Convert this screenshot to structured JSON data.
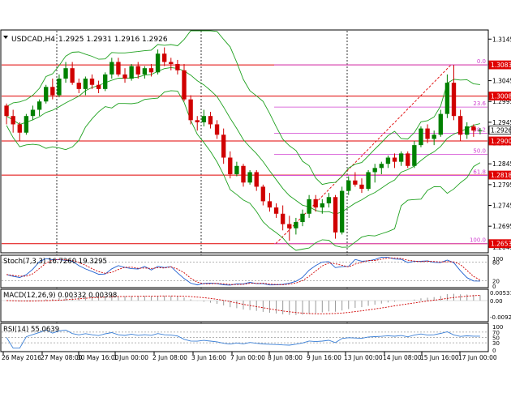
{
  "header": {
    "title": "USDCAD,H4",
    "ohlc": "1.2925 1.2931 1.2916 1.2926"
  },
  "colors": {
    "up": "#008000",
    "down": "#d00000",
    "bands": "#1fa11f",
    "hline": "#e00000",
    "fib": "#d040d0",
    "macd_signal": "#d00000",
    "rsi": "#3a7fd6",
    "stoch_main": "#1f5fd0",
    "stoch_signal": "#d00000"
  },
  "price_axis": {
    "ticks": [
      "1.3145",
      "1.3085",
      "1.3045",
      "1.2995",
      "1.2945",
      "1.2895",
      "1.2845",
      "1.2795",
      "1.2745",
      "1.2695",
      "1.2645"
    ],
    "tags": [
      {
        "label": "1.3083",
        "value": 1.3083
      },
      {
        "label": "1.3008",
        "value": 1.3008
      },
      {
        "label": "1.2926",
        "value": 1.2926,
        "current": true
      },
      {
        "label": "1.2900",
        "value": 1.29
      },
      {
        "label": "1.2818",
        "value": 1.2818
      },
      {
        "label": "1.2653",
        "value": 1.2653
      }
    ]
  },
  "fib_labels": [
    "0.0",
    "23.6",
    "38.2",
    "50.0",
    "61.8",
    "100.0"
  ],
  "stoch": {
    "label": "Stoch(7,3,3) 16.7260 19.3295",
    "ticks": [
      "100",
      "80",
      "20",
      "0"
    ]
  },
  "macd": {
    "label": "MACD(12,26,9) 0.00332 0.00398",
    "ticks": [
      "0.00531",
      "0.00",
      "-0.0092"
    ]
  },
  "rsi": {
    "label": "RSI(14) 55.0639",
    "ticks": [
      "100",
      "70",
      "50",
      "30",
      "0"
    ]
  },
  "time_axis": [
    "26 May 2016",
    "27 May 08:00",
    "30 May 16:00",
    "1 Jun 00:00",
    "2 Jun 08:00",
    "3 Jun 16:00",
    "7 Jun 00:00",
    "8 Jun 08:00",
    "9 Jun 16:00",
    "13 Jun 00:00",
    "14 Jun 08:00",
    "15 Jun 16:00",
    "17 Jun 00:00"
  ],
  "chart_data": {
    "type": "candlestick",
    "symbol": "USDCAD",
    "timeframe": "H4",
    "ylim": [
      1.2633,
      1.3165
    ],
    "horizontal_levels": [
      1.3083,
      1.3008,
      1.29,
      1.2818,
      1.2653
    ],
    "fibonacci": {
      "from": 1.2653,
      "to": 1.3083,
      "levels": [
        "0.0",
        "23.6",
        "38.2",
        "50.0",
        "61.8",
        "100.0"
      ]
    },
    "candles": [
      [
        1.2985,
        1.299,
        1.294,
        1.296
      ],
      [
        1.296,
        1.2975,
        1.292,
        1.294
      ],
      [
        1.294,
        1.2945,
        1.29,
        1.292
      ],
      [
        1.292,
        1.2965,
        1.2915,
        1.296
      ],
      [
        1.296,
        1.2985,
        1.295,
        1.2975
      ],
      [
        1.2975,
        1.3,
        1.296,
        1.2995
      ],
      [
        1.2995,
        1.3035,
        1.299,
        1.303
      ],
      [
        1.303,
        1.305,
        1.3,
        1.301
      ],
      [
        1.301,
        1.306,
        1.3005,
        1.305
      ],
      [
        1.305,
        1.309,
        1.304,
        1.3075
      ],
      [
        1.3075,
        1.309,
        1.3035,
        1.304
      ],
      [
        1.304,
        1.305,
        1.3015,
        1.3025
      ],
      [
        1.3025,
        1.3055,
        1.301,
        1.305
      ],
      [
        1.305,
        1.306,
        1.3025,
        1.3035
      ],
      [
        1.3035,
        1.3045,
        1.3015,
        1.3025
      ],
      [
        1.3025,
        1.3065,
        1.302,
        1.306
      ],
      [
        1.306,
        1.31,
        1.305,
        1.309
      ],
      [
        1.309,
        1.31,
        1.3055,
        1.306
      ],
      [
        1.306,
        1.3075,
        1.304,
        1.305
      ],
      [
        1.305,
        1.3085,
        1.3045,
        1.308
      ],
      [
        1.308,
        1.309,
        1.305,
        1.306
      ],
      [
        1.306,
        1.308,
        1.305,
        1.3075
      ],
      [
        1.3075,
        1.3085,
        1.3055,
        1.3065
      ],
      [
        1.3065,
        1.312,
        1.306,
        1.311
      ],
      [
        1.311,
        1.3125,
        1.308,
        1.309
      ],
      [
        1.309,
        1.31,
        1.307,
        1.3085
      ],
      [
        1.3085,
        1.3095,
        1.306,
        1.307
      ],
      [
        1.307,
        1.3085,
        1.2995,
        1.3
      ],
      [
        1.3,
        1.301,
        1.294,
        1.295
      ],
      [
        1.295,
        1.296,
        1.2925,
        1.2945
      ],
      [
        1.2945,
        1.2975,
        1.2935,
        1.296
      ],
      [
        1.296,
        1.297,
        1.293,
        1.294
      ],
      [
        1.294,
        1.295,
        1.2905,
        1.2915
      ],
      [
        1.2915,
        1.293,
        1.2845,
        1.286
      ],
      [
        1.286,
        1.2875,
        1.281,
        1.282
      ],
      [
        1.282,
        1.285,
        1.2815,
        1.284
      ],
      [
        1.284,
        1.2845,
        1.279,
        1.28
      ],
      [
        1.28,
        1.283,
        1.2795,
        1.2825
      ],
      [
        1.2825,
        1.283,
        1.278,
        1.279
      ],
      [
        1.279,
        1.2795,
        1.2745,
        1.2755
      ],
      [
        1.2755,
        1.2775,
        1.273,
        1.274
      ],
      [
        1.274,
        1.275,
        1.2715,
        1.2725
      ],
      [
        1.2725,
        1.2745,
        1.2685,
        1.27
      ],
      [
        1.27,
        1.272,
        1.266,
        1.269
      ],
      [
        1.269,
        1.2715,
        1.2675,
        1.2705
      ],
      [
        1.2705,
        1.2735,
        1.2695,
        1.2725
      ],
      [
        1.2725,
        1.277,
        1.2715,
        1.276
      ],
      [
        1.276,
        1.277,
        1.273,
        1.274
      ],
      [
        1.274,
        1.276,
        1.2725,
        1.275
      ],
      [
        1.275,
        1.2775,
        1.274,
        1.2765
      ],
      [
        1.2765,
        1.277,
        1.2665,
        1.268
      ],
      [
        1.268,
        1.279,
        1.2675,
        1.278
      ],
      [
        1.278,
        1.2815,
        1.277,
        1.2805
      ],
      [
        1.2805,
        1.2825,
        1.279,
        1.2795
      ],
      [
        1.2795,
        1.281,
        1.2775,
        1.2785
      ],
      [
        1.2785,
        1.283,
        1.278,
        1.2825
      ],
      [
        1.2825,
        1.2845,
        1.28,
        1.2835
      ],
      [
        1.2835,
        1.285,
        1.282,
        1.2845
      ],
      [
        1.2845,
        1.2865,
        1.2835,
        1.286
      ],
      [
        1.286,
        1.287,
        1.2835,
        1.285
      ],
      [
        1.285,
        1.2875,
        1.284,
        1.287
      ],
      [
        1.287,
        1.2875,
        1.2835,
        1.284
      ],
      [
        1.284,
        1.29,
        1.2835,
        1.289
      ],
      [
        1.289,
        1.2935,
        1.2885,
        1.293
      ],
      [
        1.293,
        1.294,
        1.2895,
        1.2905
      ],
      [
        1.2905,
        1.2925,
        1.289,
        1.2915
      ],
      [
        1.2915,
        1.2975,
        1.291,
        1.2965
      ],
      [
        1.2965,
        1.306,
        1.2955,
        1.304
      ],
      [
        1.304,
        1.3083,
        1.295,
        1.296
      ],
      [
        1.296,
        1.2975,
        1.29,
        1.2915
      ],
      [
        1.2915,
        1.2945,
        1.2905,
        1.2935
      ],
      [
        1.2935,
        1.294,
        1.291,
        1.2925
      ],
      [
        1.2925,
        1.2931,
        1.2916,
        1.2926
      ]
    ],
    "rsi_last": 55.0639,
    "stoch_last": [
      16.726,
      19.3295
    ],
    "macd_last": [
      0.00332,
      0.00398
    ]
  }
}
